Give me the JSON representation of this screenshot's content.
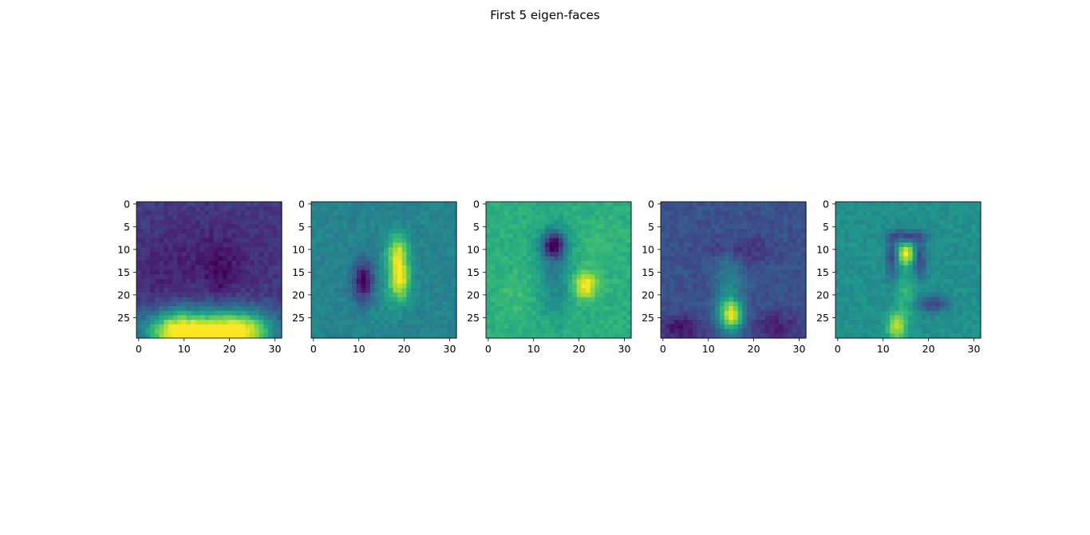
{
  "figure": {
    "suptitle": "First 5 eigen-faces"
  },
  "chart_data": [
    {
      "type": "heatmap",
      "subplot": 1,
      "title": "",
      "xlabel": "",
      "ylabel": "",
      "colormap": "viridis",
      "image_rows": 30,
      "image_cols": 32,
      "xlim": [
        -0.5,
        31.5
      ],
      "ylim": [
        29.5,
        -0.5
      ],
      "xticks": [
        0,
        10,
        20,
        30
      ],
      "yticks": [
        0,
        5,
        10,
        15,
        20,
        25
      ],
      "grid": false,
      "features": [
        {
          "x": 0,
          "y": 0,
          "sx": 100,
          "sy": 100,
          "v": 0.18
        },
        {
          "x": 16,
          "y": 12,
          "sx": 9,
          "sy": 6,
          "v": -0.1
        },
        {
          "x": 18,
          "y": 16,
          "sx": 2,
          "sy": 3,
          "v": -0.08
        },
        {
          "x": 3,
          "y": 16,
          "sx": 3,
          "sy": 5,
          "v": -0.05
        },
        {
          "x": 9,
          "y": 28,
          "sx": 5.5,
          "sy": 3.2,
          "v": 0.85
        },
        {
          "x": 22,
          "y": 28,
          "sx": 5.5,
          "sy": 3.2,
          "v": 0.85
        },
        {
          "x": 15.5,
          "y": 29.5,
          "sx": 2.5,
          "sy": 1.5,
          "v": 0.45
        }
      ]
    },
    {
      "type": "heatmap",
      "subplot": 2,
      "title": "",
      "xlabel": "",
      "ylabel": "",
      "colormap": "viridis",
      "image_rows": 30,
      "image_cols": 32,
      "xlim": [
        -0.5,
        31.5
      ],
      "ylim": [
        29.5,
        -0.5
      ],
      "xticks": [
        0,
        10,
        20,
        30
      ],
      "yticks": [
        0,
        5,
        10,
        15,
        20,
        25
      ],
      "grid": false,
      "features": [
        {
          "x": 0,
          "y": 0,
          "sx": 100,
          "sy": 100,
          "v": 0.45
        },
        {
          "x": 11,
          "y": 17,
          "sx": 1.6,
          "sy": 3.2,
          "v": -0.45
        },
        {
          "x": 18.5,
          "y": 11,
          "sx": 1.6,
          "sy": 3.0,
          "v": 0.45
        },
        {
          "x": 19,
          "y": 17,
          "sx": 1.6,
          "sy": 3.0,
          "v": 0.5
        },
        {
          "x": 16,
          "y": 22,
          "sx": 2.0,
          "sy": 4.0,
          "v": 0.05
        }
      ]
    },
    {
      "type": "heatmap",
      "subplot": 3,
      "title": "",
      "xlabel": "",
      "ylabel": "",
      "colormap": "viridis",
      "image_rows": 30,
      "image_cols": 32,
      "xlim": [
        -0.5,
        31.5
      ],
      "ylim": [
        29.5,
        -0.5
      ],
      "xticks": [
        0,
        10,
        20,
        30
      ],
      "yticks": [
        0,
        5,
        10,
        15,
        20,
        25
      ],
      "grid": false,
      "features": [
        {
          "x": 0,
          "y": 0,
          "sx": 100,
          "sy": 100,
          "v": 0.63
        },
        {
          "x": 14.5,
          "y": 9,
          "sx": 1.8,
          "sy": 2.0,
          "v": -0.55
        },
        {
          "x": 14.5,
          "y": 15,
          "sx": 2.5,
          "sy": 7.0,
          "v": -0.2
        },
        {
          "x": 21.5,
          "y": 18,
          "sx": 1.8,
          "sy": 2.0,
          "v": 0.38
        },
        {
          "x": 6,
          "y": 20,
          "sx": 3.0,
          "sy": 4.0,
          "v": 0.05
        },
        {
          "x": 24,
          "y": 10,
          "sx": 3,
          "sy": 4,
          "v": 0.05
        }
      ]
    },
    {
      "type": "heatmap",
      "subplot": 4,
      "title": "",
      "xlabel": "",
      "ylabel": "",
      "colormap": "viridis",
      "image_rows": 30,
      "image_cols": 32,
      "xlim": [
        -0.5,
        31.5
      ],
      "ylim": [
        29.5,
        -0.5
      ],
      "xticks": [
        0,
        10,
        20,
        30
      ],
      "yticks": [
        0,
        5,
        10,
        15,
        20,
        25
      ],
      "grid": false,
      "features": [
        {
          "x": 0,
          "y": 0,
          "sx": 100,
          "sy": 100,
          "v": 0.25
        },
        {
          "x": 17,
          "y": 10,
          "sx": 5.0,
          "sy": 2.0,
          "v": -0.12
        },
        {
          "x": 15,
          "y": 24.5,
          "sx": 1.8,
          "sy": 2.5,
          "v": 0.65
        },
        {
          "x": 14.5,
          "y": 17,
          "sx": 2.2,
          "sy": 5.0,
          "v": 0.2
        },
        {
          "x": 4,
          "y": 27.5,
          "sx": 3.5,
          "sy": 2.0,
          "v": -0.2
        },
        {
          "x": 25,
          "y": 27,
          "sx": 3.5,
          "sy": 2.0,
          "v": -0.18
        }
      ]
    },
    {
      "type": "heatmap",
      "subplot": 5,
      "title": "",
      "xlabel": "",
      "ylabel": "",
      "colormap": "viridis",
      "image_rows": 30,
      "image_cols": 32,
      "xlim": [
        -0.5,
        31.5
      ],
      "ylim": [
        29.5,
        -0.5
      ],
      "xticks": [
        0,
        10,
        20,
        30
      ],
      "yticks": [
        0,
        5,
        10,
        15,
        20,
        25
      ],
      "grid": false,
      "features": [
        {
          "x": 0,
          "y": 0,
          "sx": 100,
          "sy": 100,
          "v": 0.5
        },
        {
          "x": 15,
          "y": 11,
          "sx": 1.4,
          "sy": 1.5,
          "v": 0.5
        },
        {
          "x": 12,
          "y": 12,
          "sx": 1.0,
          "sy": 3.0,
          "v": -0.3
        },
        {
          "x": 18,
          "y": 12,
          "sx": 1.0,
          "sy": 3.0,
          "v": -0.3
        },
        {
          "x": 15,
          "y": 7,
          "sx": 3.0,
          "sy": 0.9,
          "v": -0.3
        },
        {
          "x": 21,
          "y": 22,
          "sx": 2.5,
          "sy": 1.3,
          "v": -0.3
        },
        {
          "x": 13,
          "y": 27,
          "sx": 1.5,
          "sy": 2.0,
          "v": 0.4
        },
        {
          "x": 15,
          "y": 20,
          "sx": 1.5,
          "sy": 4.0,
          "v": 0.15
        }
      ]
    }
  ]
}
